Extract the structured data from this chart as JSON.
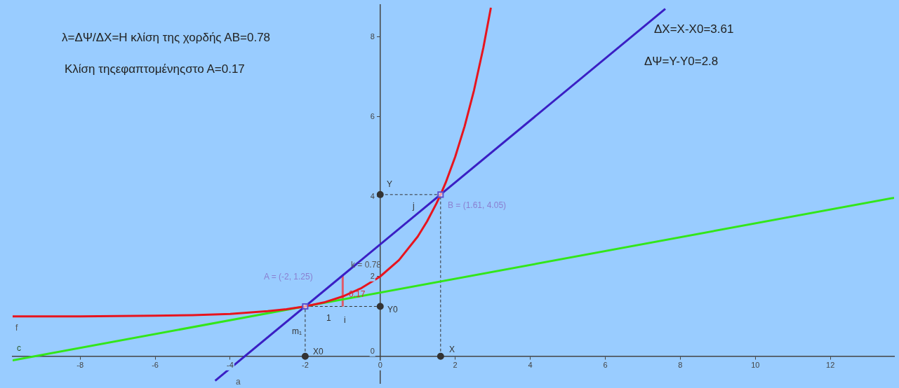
{
  "chart_data": {
    "type": "line",
    "xlim": [
      -9.8,
      13.7
    ],
    "ylim": [
      -0.67,
      8.8
    ],
    "xticks": [
      -8,
      -6,
      -4,
      -2,
      0,
      2,
      4,
      6,
      8,
      10,
      12
    ],
    "yticks": [
      0,
      2,
      4,
      6,
      8
    ],
    "grid": false,
    "legend": false,
    "series": [
      {
        "type": "line",
        "color": "#e8141e",
        "x": [
          -9.8,
          -9,
          -8,
          -7,
          -6,
          -5,
          -4,
          -3,
          -2.5,
          -2,
          -1.5,
          -1,
          -0.5,
          0,
          0.5,
          1,
          1.25,
          1.5,
          1.61,
          1.75,
          2,
          2.25,
          2.5,
          2.75,
          2.95
        ],
        "values": [
          1.0,
          1.0,
          1.0,
          1.01,
          1.02,
          1.03,
          1.06,
          1.13,
          1.18,
          1.25,
          1.35,
          1.5,
          1.71,
          2.0,
          2.41,
          3.0,
          3.38,
          3.83,
          4.05,
          4.36,
          5.0,
          5.76,
          6.66,
          7.73,
          8.73
        ]
      },
      {
        "type": "line",
        "color": "#3a1fc4",
        "x": [
          -4.4,
          7.6
        ],
        "values": [
          -0.61,
          8.7
        ]
      },
      {
        "type": "line",
        "color": "#33e61a",
        "x": [
          -9.8,
          13.7
        ],
        "values": [
          -0.1,
          3.97
        ]
      },
      {
        "type": "line",
        "color": "#e05a6a",
        "x": [
          -1,
          -1
        ],
        "values": [
          1.25,
          2.03
        ]
      },
      {
        "type": "line",
        "color": "#333333",
        "line_style": "dashed",
        "x": [
          -2,
          -2
        ],
        "values": [
          0,
          1.25
        ]
      },
      {
        "type": "line",
        "color": "#333333",
        "line_style": "dashed",
        "x": [
          -2,
          0
        ],
        "values": [
          1.25,
          1.25
        ]
      },
      {
        "type": "line",
        "color": "#333333",
        "line_style": "dashed",
        "x": [
          1.61,
          1.61
        ],
        "values": [
          0,
          4.05
        ]
      },
      {
        "type": "line",
        "color": "#333333",
        "line_style": "dashed",
        "x": [
          0,
          1.61
        ],
        "values": [
          4.05,
          4.05
        ]
      },
      {
        "type": "scatter",
        "color": "#333333",
        "marker": "circle",
        "x": [
          -2,
          1.61,
          0,
          0
        ],
        "values": [
          0,
          0,
          1.25,
          4.05
        ]
      },
      {
        "type": "scatter",
        "color": "#5a4fcf",
        "marker": "square",
        "x": [
          -2,
          1.61
        ],
        "values": [
          1.25,
          4.05
        ]
      }
    ],
    "annotations": [
      "λ=ΔΨ/ΔX=Η κλίση της χορδής ΑΒ=0.78",
      "Κλίση τηςεφαπτομένηςστο Α=0.17",
      "ΔX=X-X0=3.61",
      "ΔΨ=Y-Y0=2.8",
      "A = (-2, 1.25)",
      "B = (1.61, 4.05)",
      "k = 0.78",
      "0.17",
      "1",
      "i",
      "j",
      "m₁",
      "X0",
      "X",
      "Y0",
      "Y",
      "f",
      "c",
      "a"
    ]
  }
}
